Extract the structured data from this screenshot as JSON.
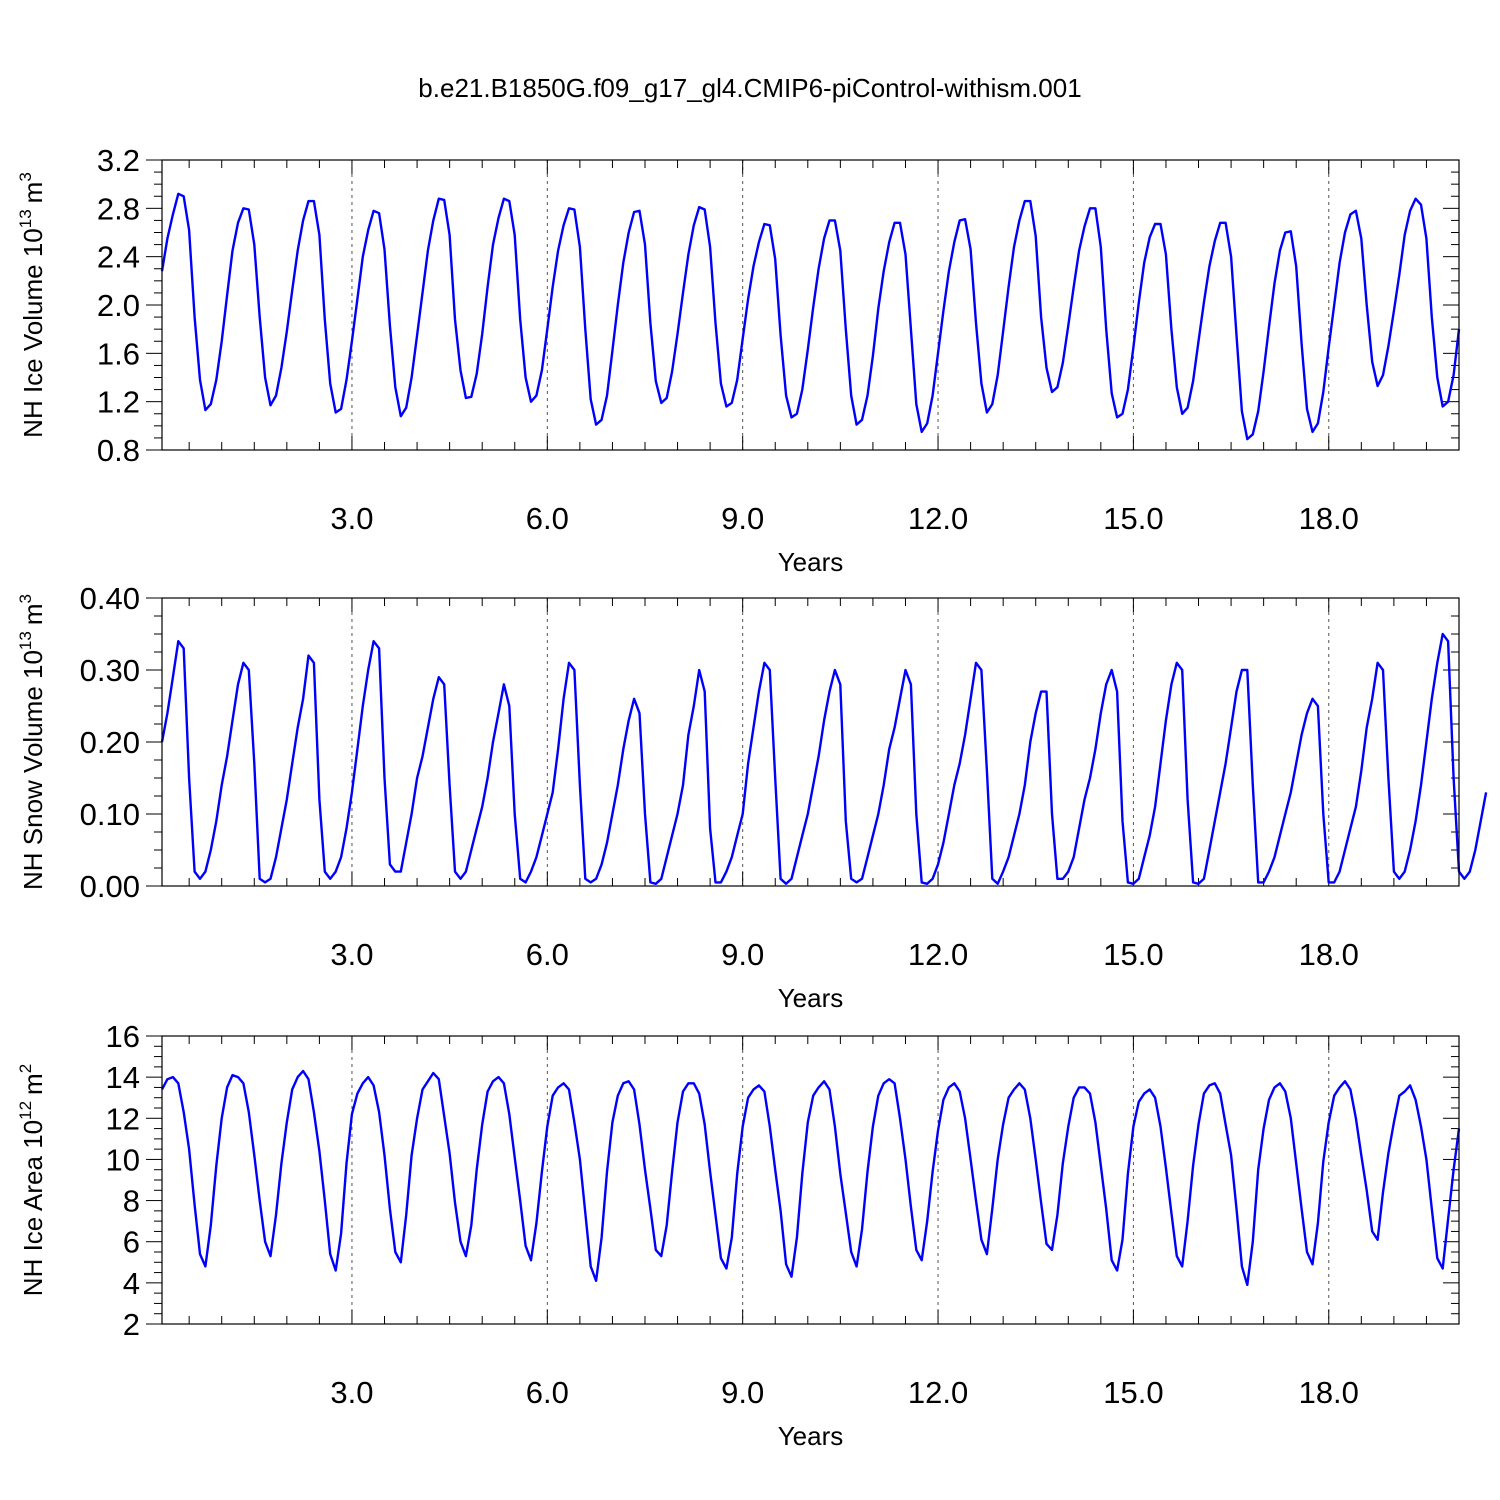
{
  "figure": {
    "title": "b.e21.B1850G.f09_g17_gl4.CMIP6-piControl-withism.001",
    "line_color": "#0000ff"
  },
  "chart_data": [
    {
      "type": "line",
      "title": "",
      "xlabel": "Years",
      "ylabel": "NH Ice Volume 10",
      "ylabel_sup": "13",
      "ylabel_unit": "m",
      "ylabel_unit_sup": "3",
      "xlim": [
        0.083,
        20.0
      ],
      "ylim": [
        0.8,
        3.2
      ],
      "x_ticks": [
        3.0,
        6.0,
        9.0,
        12.0,
        15.0,
        18.0
      ],
      "x_tick_labels": [
        "3.0",
        "6.0",
        "9.0",
        "12.0",
        "15.0",
        "18.0"
      ],
      "y_ticks": [
        0.8,
        1.2,
        1.6,
        2.0,
        2.4,
        2.8,
        3.2
      ],
      "y_tick_labels": [
        "0.8",
        "1.2",
        "1.6",
        "2.0",
        "2.4",
        "2.8",
        "3.2"
      ],
      "grid": "dashed vertical lines at major x ticks",
      "x_start": 0.083,
      "x_step": 0.0833333,
      "series": [
        {
          "values": [
            2.28,
            2.55,
            2.75,
            2.92,
            2.9,
            2.62,
            1.9,
            1.38,
            1.13,
            1.18,
            1.38,
            1.7,
            2.08,
            2.45,
            2.68,
            2.8,
            2.79,
            2.5,
            1.9,
            1.4,
            1.17,
            1.25,
            1.48,
            1.78,
            2.12,
            2.45,
            2.7,
            2.86,
            2.86,
            2.58,
            1.88,
            1.35,
            1.11,
            1.14,
            1.38,
            1.7,
            2.05,
            2.4,
            2.62,
            2.78,
            2.76,
            2.46,
            1.83,
            1.32,
            1.08,
            1.15,
            1.4,
            1.75,
            2.1,
            2.45,
            2.7,
            2.88,
            2.87,
            2.58,
            1.88,
            1.46,
            1.23,
            1.24,
            1.43,
            1.76,
            2.15,
            2.5,
            2.72,
            2.88,
            2.86,
            2.58,
            1.88,
            1.4,
            1.2,
            1.25,
            1.46,
            1.8,
            2.15,
            2.45,
            2.66,
            2.8,
            2.79,
            2.48,
            1.8,
            1.22,
            1.01,
            1.05,
            1.25,
            1.62,
            2.0,
            2.35,
            2.6,
            2.77,
            2.78,
            2.5,
            1.85,
            1.37,
            1.19,
            1.23,
            1.45,
            1.76,
            2.1,
            2.42,
            2.66,
            2.81,
            2.79,
            2.48,
            1.85,
            1.35,
            1.16,
            1.19,
            1.38,
            1.72,
            2.05,
            2.32,
            2.52,
            2.67,
            2.66,
            2.38,
            1.75,
            1.25,
            1.07,
            1.1,
            1.3,
            1.63,
            1.98,
            2.3,
            2.55,
            2.7,
            2.7,
            2.45,
            1.8,
            1.25,
            1.01,
            1.05,
            1.25,
            1.58,
            1.97,
            2.28,
            2.52,
            2.68,
            2.68,
            2.42,
            1.8,
            1.18,
            0.95,
            1.02,
            1.25,
            1.6,
            1.95,
            2.28,
            2.52,
            2.7,
            2.71,
            2.46,
            1.85,
            1.35,
            1.11,
            1.18,
            1.42,
            1.78,
            2.15,
            2.48,
            2.7,
            2.86,
            2.86,
            2.57,
            1.9,
            1.48,
            1.28,
            1.32,
            1.52,
            1.83,
            2.15,
            2.45,
            2.65,
            2.8,
            2.8,
            2.48,
            1.8,
            1.27,
            1.07,
            1.1,
            1.3,
            1.65,
            2.02,
            2.35,
            2.56,
            2.67,
            2.67,
            2.42,
            1.8,
            1.32,
            1.1,
            1.15,
            1.37,
            1.7,
            2.02,
            2.32,
            2.53,
            2.68,
            2.68,
            2.4,
            1.75,
            1.12,
            0.89,
            0.93,
            1.12,
            1.45,
            1.82,
            2.18,
            2.45,
            2.6,
            2.61,
            2.32,
            1.68,
            1.14,
            0.95,
            1.02,
            1.28,
            1.65,
            2.0,
            2.35,
            2.6,
            2.75,
            2.78,
            2.55,
            2.0,
            1.53,
            1.33,
            1.42,
            1.66,
            1.95,
            2.25,
            2.58,
            2.78,
            2.88,
            2.83,
            2.55,
            1.9,
            1.4,
            1.16,
            1.2,
            1.42,
            1.8
          ]
        }
      ]
    },
    {
      "type": "line",
      "title": "",
      "xlabel": "Years",
      "ylabel": "NH Snow Volume 10",
      "ylabel_sup": "13",
      "ylabel_unit": "m",
      "ylabel_unit_sup": "3",
      "xlim": [
        0.083,
        20.0
      ],
      "ylim": [
        0.0,
        0.4
      ],
      "x_ticks": [
        3.0,
        6.0,
        9.0,
        12.0,
        15.0,
        18.0
      ],
      "x_tick_labels": [
        "3.0",
        "6.0",
        "9.0",
        "12.0",
        "15.0",
        "18.0"
      ],
      "y_ticks": [
        0.0,
        0.1,
        0.2,
        0.3,
        0.4
      ],
      "y_tick_labels": [
        "0.00",
        "0.10",
        "0.20",
        "0.30",
        "0.40"
      ],
      "grid": "dashed vertical lines at major x ticks",
      "x_start": 0.083,
      "x_step": 0.0833333,
      "series": [
        {
          "values": [
            0.2,
            0.24,
            0.29,
            0.34,
            0.33,
            0.15,
            0.02,
            0.01,
            0.02,
            0.05,
            0.09,
            0.14,
            0.18,
            0.23,
            0.28,
            0.31,
            0.3,
            0.17,
            0.01,
            0.005,
            0.01,
            0.04,
            0.08,
            0.12,
            0.17,
            0.22,
            0.26,
            0.32,
            0.31,
            0.12,
            0.02,
            0.01,
            0.02,
            0.04,
            0.08,
            0.13,
            0.19,
            0.25,
            0.3,
            0.34,
            0.33,
            0.15,
            0.03,
            0.02,
            0.02,
            0.06,
            0.1,
            0.15,
            0.18,
            0.22,
            0.26,
            0.29,
            0.28,
            0.14,
            0.02,
            0.01,
            0.02,
            0.05,
            0.08,
            0.11,
            0.15,
            0.2,
            0.24,
            0.28,
            0.25,
            0.1,
            0.01,
            0.005,
            0.02,
            0.04,
            0.07,
            0.1,
            0.13,
            0.19,
            0.26,
            0.31,
            0.3,
            0.14,
            0.01,
            0.005,
            0.01,
            0.03,
            0.06,
            0.1,
            0.14,
            0.19,
            0.23,
            0.26,
            0.24,
            0.1,
            0.005,
            0.003,
            0.01,
            0.04,
            0.07,
            0.1,
            0.14,
            0.21,
            0.25,
            0.3,
            0.27,
            0.08,
            0.005,
            0.005,
            0.02,
            0.04,
            0.07,
            0.1,
            0.17,
            0.22,
            0.27,
            0.31,
            0.3,
            0.15,
            0.01,
            0.003,
            0.01,
            0.04,
            0.07,
            0.1,
            0.14,
            0.18,
            0.23,
            0.27,
            0.3,
            0.28,
            0.09,
            0.01,
            0.005,
            0.01,
            0.04,
            0.07,
            0.1,
            0.14,
            0.19,
            0.22,
            0.26,
            0.3,
            0.28,
            0.1,
            0.005,
            0.003,
            0.01,
            0.03,
            0.06,
            0.1,
            0.14,
            0.17,
            0.21,
            0.26,
            0.31,
            0.3,
            0.16,
            0.01,
            0.003,
            0.02,
            0.04,
            0.07,
            0.1,
            0.14,
            0.2,
            0.24,
            0.27,
            0.27,
            0.1,
            0.01,
            0.01,
            0.02,
            0.04,
            0.08,
            0.12,
            0.15,
            0.19,
            0.24,
            0.28,
            0.3,
            0.27,
            0.09,
            0.005,
            0.003,
            0.01,
            0.04,
            0.07,
            0.11,
            0.17,
            0.23,
            0.28,
            0.31,
            0.3,
            0.12,
            0.005,
            0.003,
            0.01,
            0.05,
            0.09,
            0.13,
            0.17,
            0.22,
            0.27,
            0.3,
            0.3,
            0.14,
            0.005,
            0.005,
            0.02,
            0.04,
            0.07,
            0.1,
            0.13,
            0.17,
            0.21,
            0.24,
            0.26,
            0.25,
            0.1,
            0.005,
            0.005,
            0.02,
            0.05,
            0.08,
            0.11,
            0.16,
            0.22,
            0.26,
            0.31,
            0.3,
            0.15,
            0.02,
            0.01,
            0.02,
            0.05,
            0.09,
            0.14,
            0.2,
            0.26,
            0.31,
            0.35,
            0.34,
            0.15,
            0.02,
            0.01,
            0.02,
            0.05,
            0.09,
            0.13
          ]
        }
      ]
    },
    {
      "type": "line",
      "title": "",
      "xlabel": "Years",
      "ylabel": "NH Ice Area 10",
      "ylabel_sup": "12",
      "ylabel_unit": "m",
      "ylabel_unit_sup": "2",
      "xlim": [
        0.083,
        20.0
      ],
      "ylim": [
        2,
        16
      ],
      "x_ticks": [
        3.0,
        6.0,
        9.0,
        12.0,
        15.0,
        18.0
      ],
      "x_tick_labels": [
        "3.0",
        "6.0",
        "9.0",
        "12.0",
        "15.0",
        "18.0"
      ],
      "y_ticks": [
        2,
        4,
        6,
        8,
        10,
        12,
        14,
        16
      ],
      "y_tick_labels": [
        "2",
        "4",
        "6",
        "8",
        "10",
        "12",
        "14",
        "16"
      ],
      "grid": "dashed vertical lines at major x ticks",
      "x_start": 0.083,
      "x_step": 0.0833333,
      "series": [
        {
          "values": [
            13.4,
            13.9,
            14.0,
            13.7,
            12.3,
            10.5,
            7.8,
            5.4,
            4.8,
            6.8,
            9.7,
            12.0,
            13.5,
            14.1,
            14.0,
            13.7,
            12.3,
            10.2,
            8.0,
            6.0,
            5.3,
            7.3,
            9.8,
            11.8,
            13.4,
            14.0,
            14.3,
            13.9,
            12.3,
            10.4,
            8.0,
            5.4,
            4.6,
            6.4,
            9.8,
            12.2,
            13.2,
            13.7,
            14.0,
            13.6,
            12.3,
            10.2,
            7.6,
            5.5,
            5.0,
            7.3,
            10.2,
            12.0,
            13.4,
            13.8,
            14.2,
            13.9,
            12.1,
            10.3,
            7.9,
            6.0,
            5.3,
            6.8,
            9.5,
            11.7,
            13.3,
            13.8,
            14.0,
            13.7,
            12.2,
            10.1,
            8.0,
            5.8,
            5.1,
            6.9,
            9.4,
            11.6,
            13.1,
            13.5,
            13.7,
            13.4,
            11.8,
            10.0,
            7.4,
            4.8,
            4.1,
            6.2,
            9.4,
            11.8,
            13.1,
            13.7,
            13.8,
            13.4,
            11.7,
            9.5,
            7.6,
            5.6,
            5.3,
            6.8,
            9.4,
            11.8,
            13.3,
            13.7,
            13.7,
            13.2,
            11.7,
            9.4,
            7.3,
            5.2,
            4.7,
            6.2,
            9.3,
            11.6,
            13.0,
            13.4,
            13.6,
            13.3,
            11.6,
            9.5,
            7.5,
            4.9,
            4.3,
            6.2,
            9.3,
            11.8,
            13.1,
            13.5,
            13.8,
            13.4,
            11.6,
            9.3,
            7.4,
            5.5,
            4.8,
            6.6,
            9.4,
            11.6,
            13.1,
            13.7,
            13.9,
            13.7,
            12.0,
            10.0,
            7.7,
            5.6,
            5.1,
            7.0,
            9.4,
            11.4,
            12.9,
            13.5,
            13.7,
            13.3,
            12.0,
            10.0,
            8.0,
            6.1,
            5.4,
            7.6,
            10.0,
            11.7,
            13.0,
            13.4,
            13.7,
            13.4,
            12.0,
            10.0,
            7.9,
            5.9,
            5.6,
            7.3,
            9.8,
            11.6,
            13.0,
            13.5,
            13.5,
            13.2,
            11.8,
            9.7,
            7.6,
            5.1,
            4.6,
            6.1,
            9.3,
            11.6,
            12.8,
            13.2,
            13.4,
            13.0,
            11.6,
            9.6,
            7.4,
            5.3,
            4.8,
            7.0,
            9.7,
            11.7,
            13.2,
            13.6,
            13.7,
            13.2,
            11.7,
            10.2,
            7.6,
            4.8,
            3.9,
            6.0,
            9.5,
            11.5,
            12.9,
            13.5,
            13.7,
            13.3,
            12.0,
            9.8,
            7.6,
            5.5,
            4.9,
            6.9,
            9.9,
            11.8,
            13.1,
            13.5,
            13.8,
            13.4,
            12.0,
            10.2,
            8.5,
            6.5,
            6.1,
            8.4,
            10.3,
            11.8,
            13.1,
            13.3,
            13.6,
            12.9,
            11.6,
            10.0,
            7.6,
            5.2,
            4.7,
            7.1,
            9.5,
            11.5
          ]
        }
      ]
    }
  ]
}
